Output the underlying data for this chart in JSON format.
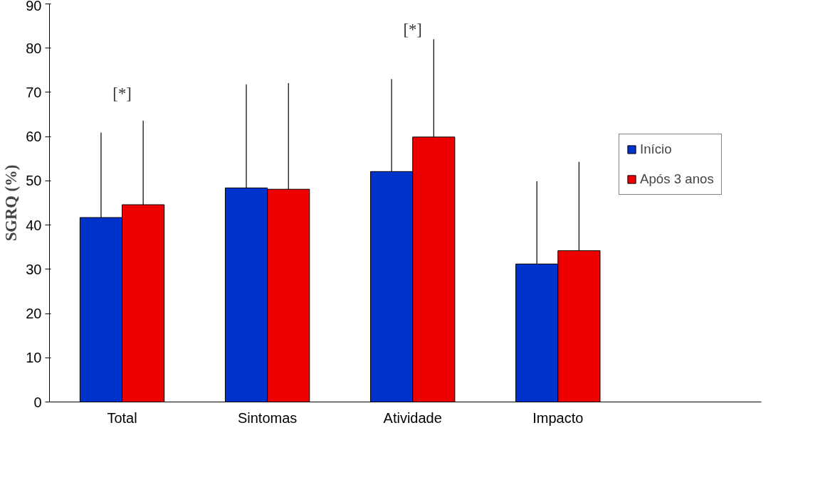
{
  "chart_data": {
    "type": "bar",
    "ylabel": "SGRQ (%)",
    "categories": [
      "Total",
      "Sintomas",
      "Atividade",
      "Impacto"
    ],
    "series": [
      {
        "name": "Início",
        "color": "#0033cc",
        "values": [
          41.7,
          48.4,
          52.1,
          31.2
        ],
        "errors": [
          [
            41.7,
            60.9
          ],
          [
            48.4,
            71.8
          ],
          [
            52.1,
            73.0
          ],
          [
            31.2,
            49.9
          ]
        ]
      },
      {
        "name": "Após 3 anos",
        "color": "#ee0000",
        "values": [
          44.6,
          48.1,
          59.9,
          34.2
        ],
        "errors": [
          [
            44.6,
            63.6
          ],
          [
            48.1,
            72.1
          ],
          [
            59.9,
            82.0
          ],
          [
            34.2,
            54.3
          ]
        ]
      }
    ],
    "ylim": [
      0,
      90
    ],
    "yticks": [
      0,
      10,
      20,
      30,
      40,
      50,
      60,
      70,
      80,
      90
    ],
    "annotations": [
      "[*]",
      "[*]"
    ],
    "grid": false,
    "legend": "right"
  }
}
